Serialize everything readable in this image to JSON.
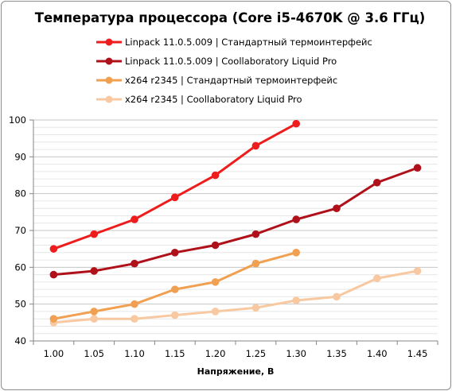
{
  "chart_data": {
    "type": "line",
    "title": "Температура процессора (Core i5-4670K @ 3.6 ГГц)",
    "xlabel": "Напряжение, В",
    "ylabel": "",
    "x": [
      1.0,
      1.05,
      1.1,
      1.15,
      1.2,
      1.25,
      1.3,
      1.35,
      1.4,
      1.45
    ],
    "x_tick_labels": [
      "1.00",
      "1.05",
      "1.10",
      "1.15",
      "1.20",
      "1.25",
      "1.30",
      "1.35",
      "1.40",
      "1.45"
    ],
    "ylim": [
      40,
      100
    ],
    "y_ticks": [
      40,
      50,
      60,
      70,
      80,
      90,
      100
    ],
    "grid": "horizontal",
    "legend_position": "top",
    "series": [
      {
        "name": "Linpack 11.0.5.009 | Стандартный термоинтерфейс",
        "color": "#ee1c1c",
        "values": [
          65,
          69,
          73,
          79,
          85,
          93,
          99,
          null,
          null,
          null
        ]
      },
      {
        "name": "Linpack 11.0.5.009 | Coollaboratory Liquid Pro",
        "color": "#b0101a",
        "values": [
          58,
          59,
          61,
          64,
          66,
          69,
          73,
          76,
          83,
          87
        ]
      },
      {
        "name": "x264 r2345 | Стандартный термоинтерфейс",
        "color": "#f0a050",
        "values": [
          46,
          48,
          50,
          54,
          56,
          61,
          64,
          null,
          null,
          null
        ]
      },
      {
        "name": "x264 r2345 | Coollaboratory Liquid Pro",
        "color": "#f8c8a0",
        "values": [
          45,
          46,
          46,
          47,
          48,
          49,
          51,
          52,
          57,
          59
        ]
      }
    ]
  }
}
